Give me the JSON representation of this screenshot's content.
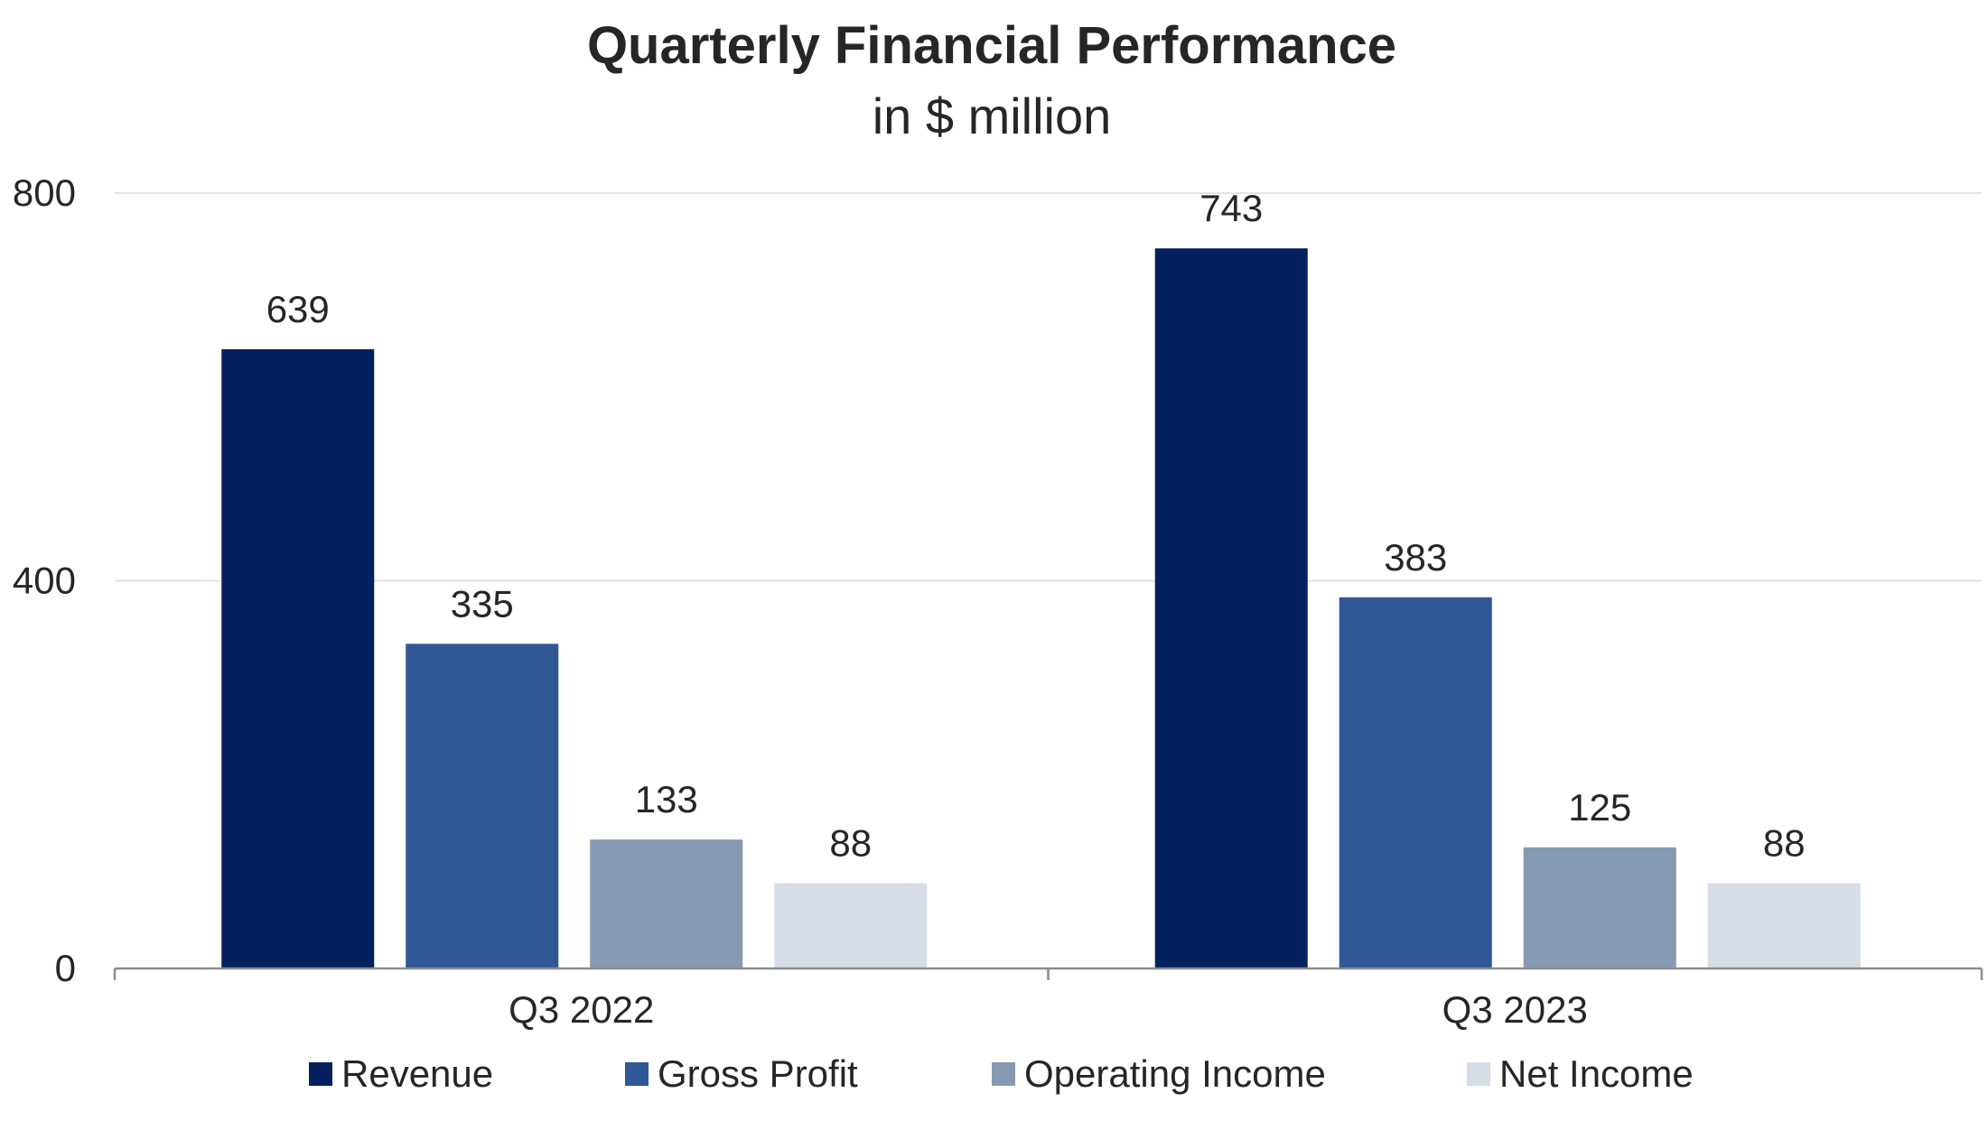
{
  "chart_data": {
    "type": "bar",
    "title": "Quarterly Financial Performance",
    "subtitle": "in $ million",
    "xlabel": "",
    "ylabel": "",
    "categories": [
      "Q3 2022",
      "Q3 2023"
    ],
    "series": [
      {
        "name": "Revenue",
        "color": "#03215f",
        "values": [
          639,
          743
        ]
      },
      {
        "name": "Gross Profit",
        "color": "#305796",
        "values": [
          335,
          383
        ]
      },
      {
        "name": "Operating Income",
        "color": "#8699b2",
        "values": [
          133,
          125
        ]
      },
      {
        "name": "Net Income",
        "color": "#d7dde6",
        "values": [
          88,
          88
        ]
      }
    ],
    "ylim": [
      0,
      800
    ],
    "yticks": [
      0,
      400,
      800
    ],
    "grid": true,
    "legend_position": "bottom",
    "data_labels": true
  }
}
